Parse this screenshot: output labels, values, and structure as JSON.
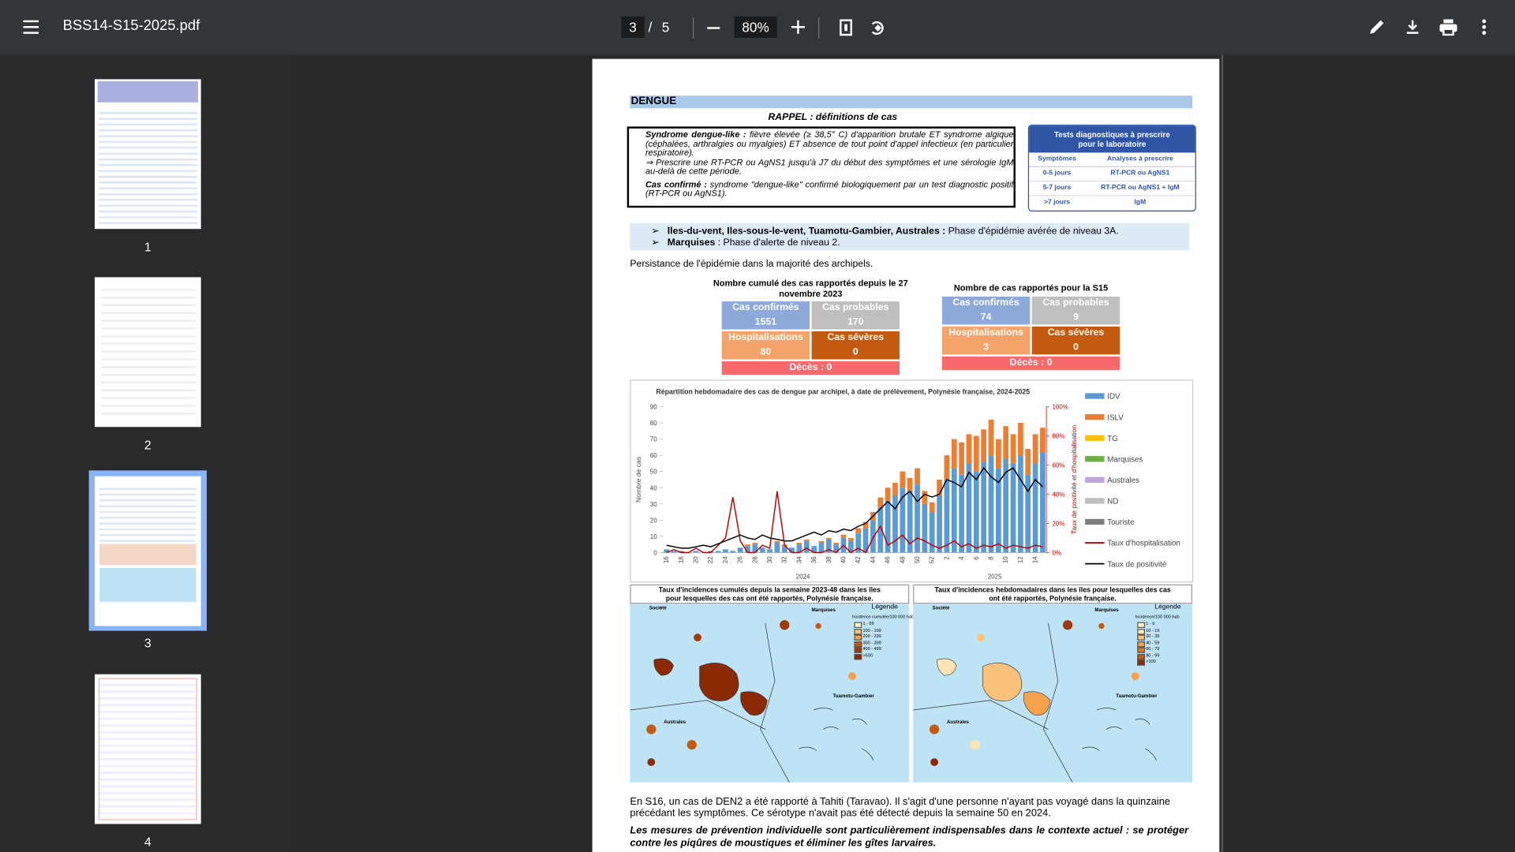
{
  "toolbar": {
    "filename": "BSS14-S15-2025.pdf",
    "page_current": "3",
    "page_separator": "/",
    "page_total": "5",
    "zoom": "80%"
  },
  "thumbnails": [
    "1",
    "2",
    "3",
    "4"
  ],
  "document": {
    "section_title": "DENGUE",
    "rappel": "RAPPEL : définitions de cas",
    "definitions": [
      {
        "term": "Syndrome dengue-like :",
        "text": " fièvre élevée (≥ 38,5° C) d'apparition brutale ET syndrome algique (céphalées, arthralgies ou myalgies) ET absence de tout point d'appel infectieux (en particulier respiratoire)."
      },
      {
        "term": "",
        "text": "⇒ Prescrire une RT-PCR ou AgNS1 jusqu'à J7 du début des symptômes et une sérologie IgM au-delà de cette période."
      },
      {
        "term": "Cas confirmé :",
        "text": " syndrome \"dengue-like\" confirmé biologiquement par un test diagnostic positif (RT-PCR ou AgNS1)."
      }
    ],
    "tests": {
      "title": "Tests diagnostiques à prescrire pour le laboratoire",
      "headers": [
        "Symptômes",
        "Analyses à prescrire"
      ],
      "rows": [
        [
          "0-5 jours",
          "RT-PCR ou AgNS1"
        ],
        [
          "5-7 jours",
          "RT-PCR ou AgNS1 + IgM"
        ],
        [
          ">7 jours",
          "IgM"
        ]
      ]
    },
    "situation": [
      {
        "archipels": "Iles-du-vent, Iles-sous-le-vent, Tuamotu-Gambier, Australes :",
        "text": " Phase d'épidémie avérée de niveau 3A."
      },
      {
        "archipels": "Marquises",
        "text": " : Phase d'alerte de niveau 2."
      }
    ],
    "persistence": "Persistance de l'épidémie dans la majorité des archipels.",
    "summaries": [
      {
        "title": "Nombre cumulé des cas rapportés depuis le 27 novembre 2023",
        "confirmed_label": "Cas confirmés",
        "confirmed": 1551,
        "probable_label": "Cas probables",
        "probable": 170,
        "hosp_label": "Hospitalisations",
        "hosp": 80,
        "severe_label": "Cas sévères",
        "severe": 0,
        "deaths": "Décès : 0"
      },
      {
        "title": "Nombre de cas rapportés pour la S15",
        "confirmed_label": "Cas confirmés",
        "confirmed": 74,
        "probable_label": "Cas probables",
        "probable": 9,
        "hosp_label": "Hospitalisations",
        "hosp": 3,
        "severe_label": "Cas sévères",
        "severe": 0,
        "deaths": "Décès : 0"
      }
    ],
    "maps": [
      {
        "title": "Taux d'incidences cumulés depuis la semaine 2023-48 dans les îles pour lesquelles des cas ont été rapportés, Polynésie française.",
        "legend_title": "Légende",
        "legend_sub": "Incidence cumulée/100 000 hab",
        "classes": [
          "1 - 99",
          "100 - 199",
          "200 - 299",
          "300 - 399",
          "400 - 499",
          ">500"
        ],
        "regions": [
          "Société",
          "Marquises",
          "Australes",
          "Tuamotu-Gambier"
        ]
      },
      {
        "title": "Taux d'incidences hebdomadaires dans les îles pour lesquelles des cas ont été rapportés, Polynésie française.",
        "legend_title": "Légende",
        "legend_sub": "Incidence/100 000 hab",
        "classes": [
          "1 - 9",
          "10 - 19",
          "20 - 39",
          "40 - 59",
          "60 - 79",
          "80 - 99",
          ">100"
        ],
        "regions": [
          "Société",
          "Marquises",
          "Australes",
          "Tuamotu-Gambier"
        ]
      }
    ],
    "paragraph": "En S16, un cas de DEN2 a été rapporté à Tahiti (Taravao). Il s'agit d'une personne n'ayant pas voyagé dans la quinzaine précédant les symptômes. Ce sérotype n'avait pas été détecté depuis la semaine 50 en 2024.",
    "emphasis": "Les mesures de prévention individuelle sont particulièrement indispensables dans le contexte actuel : se protéger contre les piqûres de moustiques et éliminer les gîtes larvaires."
  },
  "chart_data": {
    "type": "bar",
    "title": "Répartition hebdomadaire des cas de dengue par archipel, à date de prélèvement, Polynésie française, 2024-2025",
    "y_label": "Nombre de cas",
    "y2_label": "Taux de positivité et d'hospitalisation",
    "years": [
      "2024",
      "2025"
    ],
    "categories": [
      "16",
      null,
      "18",
      null,
      "20",
      null,
      "22",
      null,
      "24",
      null,
      "26",
      null,
      "28",
      null,
      "30",
      null,
      "32",
      null,
      "34",
      null,
      "36",
      null,
      "38",
      null,
      "40",
      null,
      "42",
      null,
      "44",
      null,
      "46",
      null,
      "48",
      null,
      "50",
      null,
      "52",
      null,
      "2",
      null,
      "4",
      null,
      "6",
      null,
      "8",
      null,
      "10",
      null,
      "12",
      null,
      "14",
      null
    ],
    "ylim": [
      0,
      90
    ],
    "yticks": [
      0,
      10,
      20,
      30,
      40,
      50,
      60,
      70,
      80,
      90
    ],
    "y2lim": [
      0,
      100
    ],
    "y2ticks": [
      {
        "value": 0,
        "label": "0%"
      },
      {
        "value": 20,
        "label": "20%"
      },
      {
        "value": 40,
        "label": "40%"
      },
      {
        "value": 60,
        "label": "60%"
      },
      {
        "value": 80,
        "label": "80%"
      },
      {
        "value": 100,
        "label": "100%"
      }
    ],
    "series": [
      {
        "name": "IDV",
        "color": "#5b9bd5",
        "values": [
          2,
          1,
          1,
          0,
          1,
          0,
          1,
          1,
          2,
          1,
          3,
          4,
          5,
          3,
          2,
          6,
          4,
          3,
          5,
          7,
          4,
          6,
          8,
          5,
          9,
          7,
          12,
          15,
          20,
          28,
          32,
          35,
          40,
          38,
          42,
          30,
          25,
          35,
          45,
          52,
          48,
          55,
          50,
          56,
          60,
          52,
          58,
          55,
          60,
          48,
          55,
          62
        ]
      },
      {
        "name": "ISLV",
        "color": "#ed7d31",
        "values": [
          0,
          0,
          0,
          0,
          0,
          0,
          0,
          0,
          0,
          0,
          0,
          1,
          1,
          0,
          0,
          1,
          1,
          0,
          1,
          1,
          0,
          1,
          1,
          1,
          2,
          2,
          3,
          4,
          5,
          6,
          8,
          8,
          10,
          8,
          10,
          8,
          6,
          10,
          15,
          18,
          20,
          18,
          22,
          20,
          22,
          18,
          20,
          18,
          20,
          16,
          18,
          15
        ]
      },
      {
        "name": "TG",
        "color": "#ffc000"
      },
      {
        "name": "Marquises",
        "color": "#70ad47"
      },
      {
        "name": "Australes",
        "color": "#c5a3e0"
      },
      {
        "name": "ND",
        "color": "#bfbfbf"
      },
      {
        "name": "Touriste",
        "color": "#7f7f7f"
      },
      {
        "name": "Taux d'hospitalisation",
        "color": "#c00000",
        "axis": "y2",
        "values": [
          0,
          2,
          0,
          0,
          3,
          0,
          0,
          5,
          10,
          38,
          8,
          0,
          0,
          5,
          3,
          42,
          5,
          0,
          0,
          3,
          0,
          0,
          2,
          0,
          5,
          0,
          3,
          0,
          10,
          18,
          5,
          8,
          12,
          6,
          10,
          8,
          5,
          3,
          5,
          8,
          4,
          6,
          3,
          5,
          4,
          6,
          3,
          5,
          4,
          3,
          5,
          4
        ]
      },
      {
        "name": "Taux de positivité",
        "color": "#000000",
        "axis": "y2",
        "values": [
          5,
          4,
          3,
          3,
          4,
          5,
          4,
          6,
          8,
          10,
          12,
          10,
          9,
          12,
          10,
          9,
          8,
          8,
          10,
          12,
          14,
          12,
          15,
          14,
          16,
          15,
          18,
          20,
          25,
          30,
          35,
          30,
          38,
          42,
          35,
          40,
          38,
          40,
          50,
          48,
          45,
          55,
          50,
          58,
          52,
          48,
          55,
          58,
          50,
          42,
          50,
          45
        ]
      }
    ]
  }
}
